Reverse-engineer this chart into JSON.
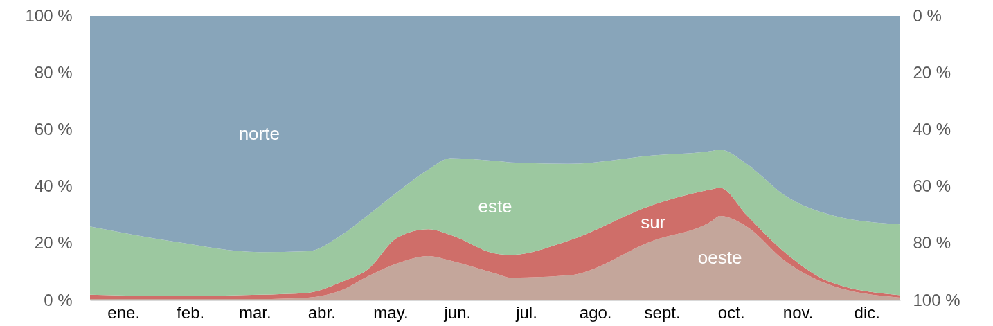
{
  "chart_data": {
    "type": "area",
    "stacked": true,
    "x": [
      "--01-01",
      "--02-09",
      "--03-18",
      "--04-09",
      "--04-24",
      "--05-06",
      "--05-19",
      "--06-02",
      "--06-12",
      "--07-02",
      "--07-09",
      "--08-04",
      "--09-11",
      "--10-07",
      "--10-11",
      "--10-23",
      "--11-09",
      "--11-30",
      "--12-31"
    ],
    "series": [
      {
        "name": "oeste",
        "color": "#c4a69b",
        "values": [
          0.5,
          0.5,
          0.5,
          1,
          3.6,
          8.5,
          13,
          15.6,
          14,
          9.5,
          8,
          8.8,
          21,
          27.7,
          29.7,
          26,
          14,
          5.3,
          1
        ]
      },
      {
        "name": "sur",
        "color": "#cf6e69",
        "values": [
          1.5,
          1,
          1.5,
          1.7,
          2.9,
          2.5,
          9,
          9.4,
          9,
          7,
          8,
          12.2,
          12.6,
          11.3,
          9.9,
          4,
          3,
          1,
          0.8
        ]
      },
      {
        "name": "este",
        "color": "#9cc8a0",
        "values": [
          24,
          19,
          15,
          14.6,
          16.5,
          19,
          16,
          21,
          27,
          32.5,
          32.5,
          27,
          17.4,
          13.5,
          13.4,
          18,
          20,
          23.7,
          24.9
        ]
      },
      {
        "name": "norte",
        "color": "#88a5ba",
        "values": [
          74,
          79.5,
          83,
          82.7,
          77,
          70,
          62,
          54,
          50,
          51,
          51.5,
          52,
          49,
          47.5,
          47,
          52,
          63,
          70,
          73.3
        ]
      }
    ],
    "xticks": [
      {
        "value": "--01-16",
        "label": "ene."
      },
      {
        "value": "--02-15",
        "label": "feb."
      },
      {
        "value": "--03-16",
        "label": "mar."
      },
      {
        "value": "--04-15",
        "label": "abr."
      },
      {
        "value": "--05-16",
        "label": "may."
      },
      {
        "value": "--06-15",
        "label": "jun."
      },
      {
        "value": "--07-16",
        "label": "jul."
      },
      {
        "value": "--08-16",
        "label": "ago."
      },
      {
        "value": "--09-15",
        "label": "sept."
      },
      {
        "value": "--10-16",
        "label": "oct."
      },
      {
        "value": "--11-15",
        "label": "nov."
      },
      {
        "value": "--12-16",
        "label": "dic."
      }
    ],
    "xlim": [
      "--01-01",
      "--12-31"
    ],
    "ylim": [
      0,
      100
    ],
    "yticks": [
      {
        "value": 0,
        "label": "0 %"
      },
      {
        "value": 20,
        "label": "20 %"
      },
      {
        "value": 40,
        "label": "40 %"
      },
      {
        "value": 60,
        "label": "60 %"
      },
      {
        "value": 80,
        "label": "80 %"
      },
      {
        "value": 100,
        "label": "100 %"
      }
    ],
    "y2lim": [
      100,
      0
    ],
    "y2ticks": [
      {
        "value": 0,
        "label": "0 %"
      },
      {
        "value": 20,
        "label": "20 %"
      },
      {
        "value": 40,
        "label": "40 %"
      },
      {
        "value": 60,
        "label": "60 %"
      },
      {
        "value": 80,
        "label": "80 %"
      },
      {
        "value": 100,
        "label": "100 %"
      }
    ]
  }
}
